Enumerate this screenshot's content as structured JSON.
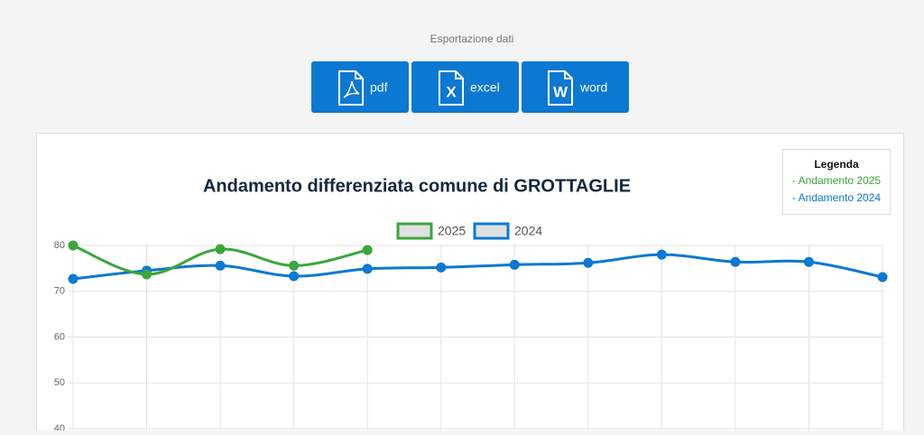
{
  "export": {
    "label": "Esportazione dati",
    "buttons": [
      "pdf",
      "excel",
      "word"
    ]
  },
  "side_legend": {
    "title": "Legenda",
    "items": [
      "- Andamento 2025",
      "- Andamento 2024"
    ]
  },
  "chart_data": {
    "type": "line",
    "title": "Andamento differenziata comune di GROTTAGLIE",
    "series": [
      {
        "name": "2025",
        "color": "#3aa63a",
        "values": [
          80,
          73.7,
          79.2,
          75.6,
          79.0,
          null,
          null,
          null,
          null,
          null,
          null,
          null
        ]
      },
      {
        "name": "2024",
        "color": "#0b78d2",
        "values": [
          72.7,
          74.5,
          75.6,
          73.3,
          74.9,
          75.2,
          75.8,
          76.2,
          78.0,
          76.4,
          76.4,
          73.1
        ]
      }
    ],
    "ylim": [
      40,
      80
    ],
    "yticks": [
      40,
      50,
      60,
      70,
      80
    ],
    "grid": true,
    "legend": "top"
  }
}
